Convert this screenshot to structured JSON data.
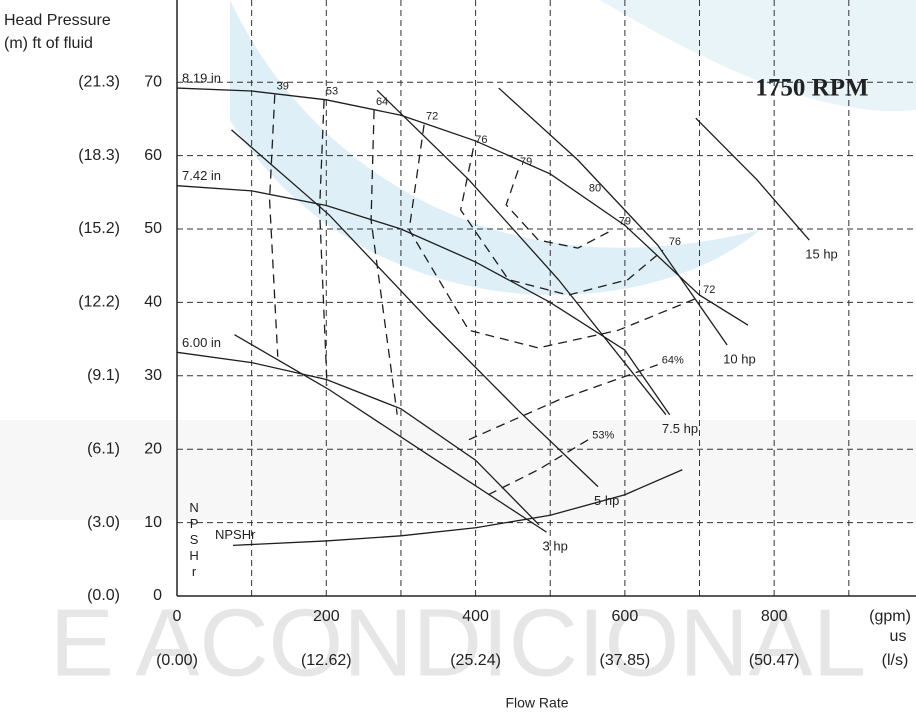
{
  "chart_data": {
    "type": "pump-curve",
    "annotation": "1750 RPM",
    "y_label_lines": [
      "Head Pressure",
      "(m) ft of fluid"
    ],
    "x_label": "Flow Rate",
    "x_unit_label": "(gpm)",
    "x_unit_sub": "us",
    "x_metric_unit": "(l/s)",
    "npsh_axis_label": "NPSHr",
    "watermark_text": "E ACONDICIONAL",
    "xlim": [
      0,
      990
    ],
    "ylim": [
      0,
      81.2
    ],
    "xticks": [
      0,
      200,
      400,
      600,
      800
    ],
    "x_metric_labels": [
      "(0.00)",
      "(12.62)",
      "(25.24)",
      "(37.85)",
      "(50.47)"
    ],
    "x_gridlines": [
      100,
      200,
      300,
      400,
      500,
      600,
      700,
      800,
      900
    ],
    "yticks": [
      0,
      10,
      20,
      30,
      40,
      50,
      60,
      70
    ],
    "y_metric_labels": [
      "(0.0)",
      "(3.0)",
      "(6.1)",
      "(9.1)",
      "(12.2)",
      "(15.2)",
      "(18.3)",
      "(21.3)"
    ],
    "grid": true,
    "color": "#1e1e1e",
    "series": [
      {
        "name": "8.19 in",
        "kind": "impeller",
        "x": [
          0,
          100,
          200,
          300,
          400,
          500,
          600,
          700,
          765
        ],
        "values": [
          69.2,
          68.8,
          67.6,
          65.5,
          62,
          57.5,
          50.5,
          41,
          36.9
        ]
      },
      {
        "name": "7.42 in",
        "kind": "impeller",
        "x": [
          0,
          100,
          200,
          300,
          400,
          500,
          600,
          660
        ],
        "values": [
          55.9,
          55.2,
          53.2,
          50,
          45.5,
          40,
          33.5,
          24.7
        ]
      },
      {
        "name": "6.00 in",
        "kind": "impeller",
        "x": [
          0,
          100,
          200,
          300,
          400,
          485
        ],
        "values": [
          33.2,
          31.8,
          29.5,
          25.5,
          18.5,
          9.7
        ]
      },
      {
        "name": "NPSHr",
        "kind": "npsh",
        "x": [
          75,
          200,
          300,
          400,
          500,
          600,
          677
        ],
        "values": [
          6.9,
          7.5,
          8.2,
          9.3,
          11,
          13.8,
          17.2
        ]
      },
      {
        "name": "3 hp",
        "kind": "power",
        "x": [
          77,
          204,
          337,
          495
        ],
        "values": [
          35.6,
          28.1,
          19.2,
          8.7
        ]
      },
      {
        "name": "5 hp",
        "kind": "power",
        "x": [
          73,
          204,
          337,
          457,
          564
        ],
        "values": [
          63.5,
          51.9,
          37.6,
          25.3,
          14.9
        ]
      },
      {
        "name": "7.5 hp",
        "kind": "power",
        "x": [
          268,
          391,
          511,
          655
        ],
        "values": [
          68.9,
          56.7,
          43.1,
          24.7
        ]
      },
      {
        "name": "10 hp",
        "kind": "power",
        "x": [
          431,
          537,
          644,
          737
        ],
        "values": [
          69.2,
          59.4,
          47.8,
          34.2
        ]
      },
      {
        "name": "15 hp",
        "kind": "power",
        "x": [
          695,
          777,
          847
        ],
        "values": [
          65.1,
          56.7,
          48.5
        ]
      },
      {
        "name": "39",
        "kind": "efficiency",
        "x": [
          131,
          124,
          135
        ],
        "values": [
          68.3,
          54,
          32.6
        ]
      },
      {
        "name": "53",
        "kind": "efficiency",
        "x": [
          197,
          191,
          201
        ],
        "values": [
          67.6,
          52.6,
          28.7
        ]
      },
      {
        "name": "64",
        "kind": "efficiency",
        "x": [
          264,
          260,
          295
        ],
        "values": [
          66.2,
          51.2,
          24.7
        ]
      },
      {
        "name": "72",
        "end_name": "72",
        "kind": "efficiency",
        "x": [
          331,
          311,
          391,
          484,
          591,
          697
        ],
        "values": [
          64.2,
          49.9,
          36.2,
          33.8,
          36.2,
          40.6
        ]
      },
      {
        "name": "76",
        "end_name": "76",
        "kind": "efficiency",
        "x": [
          397,
          380,
          444,
          524,
          604,
          651
        ],
        "values": [
          61,
          52.6,
          43.1,
          41,
          43.1,
          47.1
        ]
      },
      {
        "name": "79",
        "end_name": "79",
        "kind": "efficiency",
        "x": [
          457,
          441,
          484,
          537,
          584
        ],
        "values": [
          58,
          53.3,
          48.5,
          47.4,
          49.9
        ]
      },
      {
        "name": "64%",
        "kind": "efficiency-low",
        "x": [
          391,
          511,
          644
        ],
        "values": [
          21.3,
          26.7,
          31.5
        ]
      },
      {
        "name": "53%",
        "kind": "efficiency-low",
        "x": [
          417,
          484,
          551
        ],
        "values": [
          13.8,
          17.2,
          21.3
        ]
      }
    ],
    "point_labels": [
      {
        "text": "80",
        "x": 560,
        "y": 55.5
      }
    ]
  }
}
